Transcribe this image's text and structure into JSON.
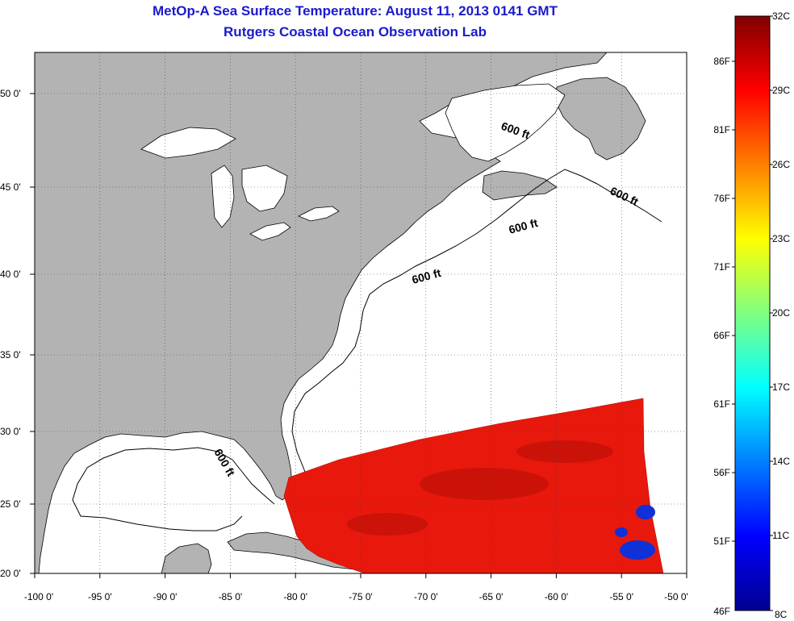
{
  "header": {
    "title": "MetOp-A Sea Surface Temperature:  August 11, 2013 0141 GMT",
    "subtitle": "Rutgers Coastal Ocean Observation Lab"
  },
  "map": {
    "x_ticks": [
      "-100 0'",
      "-95 0'",
      "-90 0'",
      "-85 0'",
      "-80 0'",
      "-75 0'",
      "-70 0'",
      "-65 0'",
      "-60 0'",
      "-55 0'",
      "-50 0'"
    ],
    "y_ticks": [
      "50 0'",
      "45 0'",
      "40 0'",
      "35 0'",
      "30 0'",
      "25 0'",
      "20 0'"
    ],
    "contour_labels": [
      "600 ft",
      "600 ft",
      "600 ft",
      "600 ft",
      "600 ft"
    ],
    "colors": {
      "land": "#b3b3b3",
      "ocean": "#ffffff",
      "sst_warm": "#e8180c",
      "sst_cool": "#1030d8"
    }
  },
  "colorbar": {
    "celsius_ticks": [
      "32C",
      "29C",
      "26C",
      "23C",
      "20C",
      "17C",
      "14C",
      "11C",
      "8C"
    ],
    "fahrenheit_ticks": [
      "86F",
      "81F",
      "76F",
      "71F",
      "66F",
      "61F",
      "56F",
      "51F",
      "46F"
    ],
    "range_c": [
      8,
      32
    ],
    "colormap": "jet"
  }
}
